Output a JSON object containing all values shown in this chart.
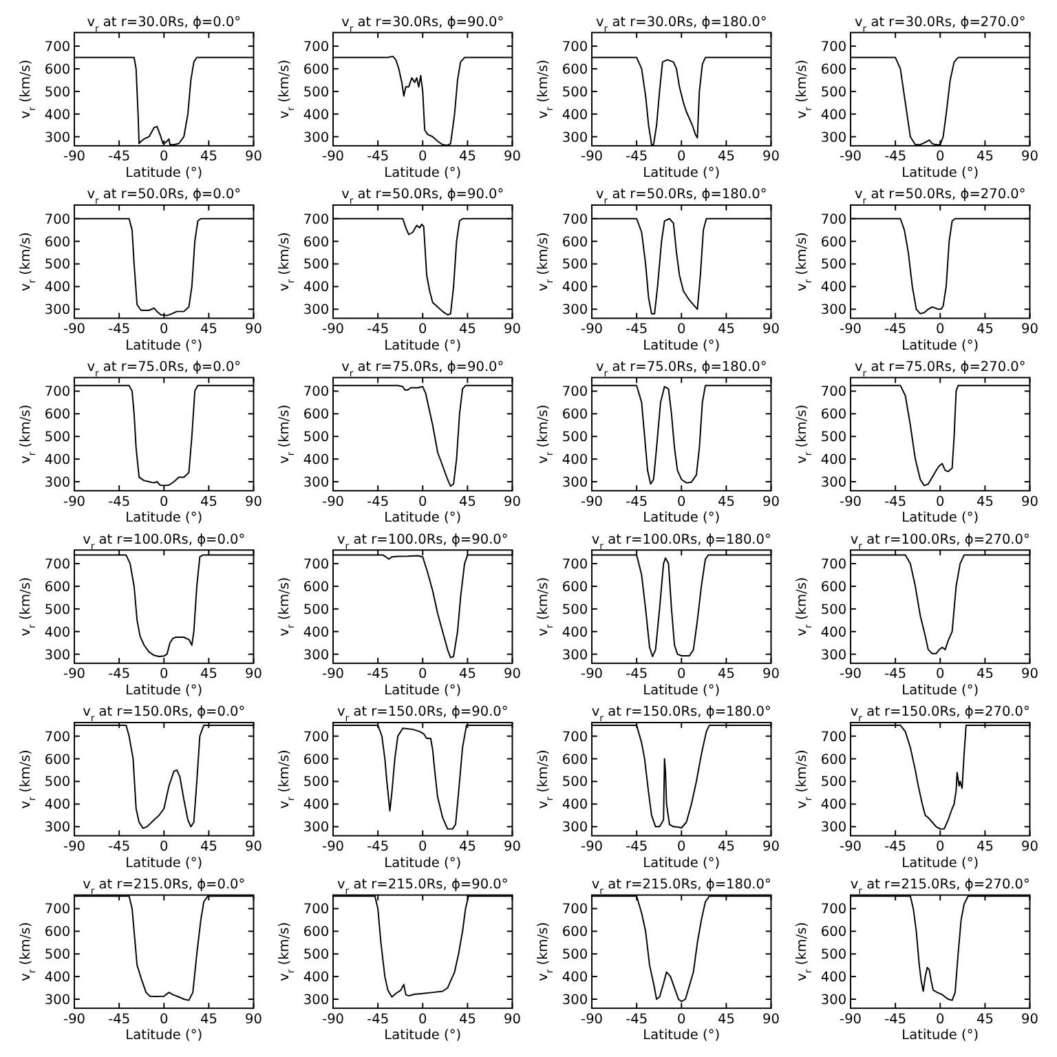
{
  "chart_data": [
    {
      "type": "line",
      "title": "v$_{r}$ at r=30.0Rs, ϕ=0.0°",
      "xlabel": "Latitude (°)",
      "ylabel": "v$_{r}$ (km/s)",
      "xlim": [
        -90,
        90
      ],
      "xticks": [
        -90,
        -45,
        0,
        45,
        90
      ],
      "ylim": [
        260,
        760
      ],
      "yticks": [
        300,
        400,
        500,
        600,
        700
      ],
      "series": [
        {
          "color": "#000000",
          "x": [
            -90,
            -30,
            -28,
            -26,
            -25,
            -23,
            -20,
            -15,
            -10,
            -7,
            -4,
            -1,
            2,
            5,
            6,
            10,
            15,
            20,
            24,
            27,
            30,
            33,
            90
          ],
          "values": [
            650,
            650,
            600,
            400,
            270,
            280,
            290,
            300,
            340,
            345,
            310,
            270,
            275,
            290,
            265,
            265,
            270,
            300,
            400,
            550,
            630,
            650,
            650
          ]
        }
      ]
    },
    {
      "type": "line",
      "title": "v$_{r}$ at r=30.0Rs, ϕ=90.0°",
      "xlabel": "Latitude (°)",
      "ylabel": "v$_{r}$ (km/s)",
      "xlim": [
        -90,
        90
      ],
      "xticks": [
        -90,
        -45,
        0,
        45,
        90
      ],
      "ylim": [
        260,
        760
      ],
      "yticks": [
        300,
        400,
        500,
        600,
        700
      ],
      "series": [
        {
          "color": "#000000",
          "x": [
            -90,
            -35,
            -30,
            -27,
            -24,
            -21,
            -19,
            -17,
            -14,
            -11,
            -8,
            -6,
            -4,
            -2,
            0,
            2,
            5,
            10,
            15,
            20,
            25,
            28,
            32,
            35,
            38,
            42,
            90
          ],
          "values": [
            650,
            650,
            655,
            640,
            600,
            540,
            480,
            520,
            520,
            560,
            540,
            560,
            520,
            570,
            500,
            330,
            310,
            300,
            280,
            265,
            262,
            270,
            400,
            550,
            630,
            650,
            650
          ]
        }
      ]
    },
    {
      "type": "line",
      "title": "v$_{r}$ at r=30.0Rs, ϕ=180.0°",
      "xlabel": "Latitude (°)",
      "ylabel": "v$_{r}$ (km/s)",
      "xlim": [
        -90,
        90
      ],
      "xticks": [
        -90,
        -45,
        0,
        45,
        90
      ],
      "ylim": [
        260,
        760
      ],
      "yticks": [
        300,
        400,
        500,
        600,
        700
      ],
      "series": [
        {
          "color": "#000000",
          "x": [
            -90,
            -45,
            -40,
            -36,
            -33,
            -30,
            -28,
            -25,
            -22,
            -19,
            -14,
            -8,
            -5,
            -2,
            2,
            5,
            8,
            11,
            14,
            16,
            18,
            21,
            24,
            90
          ],
          "values": [
            650,
            650,
            600,
            480,
            350,
            265,
            265,
            350,
            500,
            630,
            640,
            630,
            600,
            520,
            450,
            410,
            380,
            350,
            310,
            295,
            500,
            620,
            650,
            650
          ]
        }
      ]
    },
    {
      "type": "line",
      "title": "v$_{r}$ at r=30.0Rs, ϕ=270.0°",
      "xlabel": "Latitude (°)",
      "ylabel": "v$_{r}$ (km/s)",
      "xlim": [
        -90,
        90
      ],
      "xticks": [
        -90,
        -45,
        0,
        45,
        90
      ],
      "ylim": [
        260,
        760
      ],
      "yticks": [
        300,
        400,
        500,
        600,
        700
      ],
      "series": [
        {
          "color": "#000000",
          "x": [
            -90,
            -45,
            -40,
            -35,
            -30,
            -25,
            -20,
            -15,
            -11,
            -8,
            -5,
            0,
            3,
            6,
            10,
            14,
            18,
            90
          ],
          "values": [
            650,
            650,
            600,
            450,
            300,
            265,
            265,
            275,
            285,
            270,
            265,
            265,
            300,
            400,
            550,
            630,
            650,
            650
          ]
        }
      ]
    },
    {
      "type": "line",
      "title": "v$_{r}$ at r=50.0Rs, ϕ=0.0°",
      "xlabel": "Latitude (°)",
      "ylabel": "v$_{r}$ (km/s)",
      "xlim": [
        -90,
        90
      ],
      "xticks": [
        -90,
        -45,
        0,
        45,
        90
      ],
      "ylim": [
        260,
        760
      ],
      "yticks": [
        300,
        400,
        500,
        600,
        700
      ],
      "series": [
        {
          "color": "#000000",
          "x": [
            -90,
            -35,
            -32,
            -30,
            -27,
            -23,
            -15,
            -10,
            -7,
            -3,
            3,
            8,
            13,
            20,
            25,
            28,
            31,
            34,
            37,
            90
          ],
          "values": [
            700,
            700,
            650,
            500,
            320,
            295,
            295,
            305,
            290,
            275,
            272,
            280,
            290,
            290,
            310,
            400,
            600,
            690,
            700,
            700
          ]
        }
      ]
    },
    {
      "type": "line",
      "title": "v$_{r}$ at r=50.0Rs, ϕ=90.0°",
      "xlabel": "Latitude (°)",
      "ylabel": "v$_{r}$ (km/s)",
      "xlim": [
        -90,
        90
      ],
      "xticks": [
        -90,
        -45,
        0,
        45,
        90
      ],
      "ylim": [
        260,
        760
      ],
      "yticks": [
        300,
        400,
        500,
        600,
        700
      ],
      "series": [
        {
          "color": "#000000",
          "x": [
            -90,
            -20,
            -17,
            -14,
            -10,
            -6,
            -3,
            -1,
            1,
            4,
            7,
            10,
            15,
            20,
            25,
            28,
            31,
            34,
            37,
            40,
            90
          ],
          "values": [
            700,
            700,
            660,
            630,
            640,
            670,
            660,
            675,
            665,
            450,
            380,
            330,
            310,
            290,
            275,
            280,
            400,
            600,
            690,
            700,
            700
          ]
        }
      ]
    },
    {
      "type": "line",
      "title": "v$_{r}$ at r=50.0Rs, ϕ=180.0°",
      "xlabel": "Latitude (°)",
      "ylabel": "v$_{r}$ (km/s)",
      "xlim": [
        -90,
        90
      ],
      "xticks": [
        -90,
        -45,
        0,
        45,
        90
      ],
      "ylim": [
        260,
        760
      ],
      "yticks": [
        300,
        400,
        500,
        600,
        700
      ],
      "series": [
        {
          "color": "#000000",
          "x": [
            -90,
            -45,
            -40,
            -36,
            -33,
            -30,
            -27,
            -24,
            -20,
            -17,
            -12,
            -8,
            -5,
            -2,
            2,
            8,
            14,
            16,
            19,
            22,
            25,
            90
          ],
          "values": [
            700,
            700,
            640,
            500,
            350,
            280,
            280,
            400,
            600,
            690,
            700,
            680,
            550,
            450,
            380,
            340,
            310,
            300,
            450,
            650,
            700,
            700
          ]
        }
      ]
    },
    {
      "type": "line",
      "title": "v$_{r}$ at r=50.0Rs, ϕ=270.0°",
      "xlabel": "Latitude (°)",
      "ylabel": "v$_{r}$ (km/s)",
      "xlim": [
        -90,
        90
      ],
      "xticks": [
        -90,
        -45,
        0,
        45,
        90
      ],
      "ylim": [
        260,
        760
      ],
      "yticks": [
        300,
        400,
        500,
        600,
        700
      ],
      "series": [
        {
          "color": "#000000",
          "x": [
            -90,
            -40,
            -36,
            -32,
            -28,
            -24,
            -20,
            -16,
            -12,
            -8,
            -5,
            -2,
            1,
            3,
            6,
            9,
            12,
            15,
            90
          ],
          "values": [
            700,
            700,
            650,
            550,
            400,
            300,
            280,
            285,
            300,
            310,
            305,
            300,
            300,
            315,
            400,
            600,
            690,
            700,
            700
          ]
        }
      ]
    },
    {
      "type": "line",
      "title": "v$_{r}$ at r=75.0Rs, ϕ=0.0°",
      "xlabel": "Latitude (°)",
      "ylabel": "v$_{r}$ (km/s)",
      "xlim": [
        -90,
        90
      ],
      "xticks": [
        -90,
        -45,
        0,
        45,
        90
      ],
      "ylim": [
        260,
        760
      ],
      "yticks": [
        300,
        400,
        500,
        600,
        700
      ],
      "series": [
        {
          "color": "#000000",
          "x": [
            -90,
            -35,
            -32,
            -30,
            -28,
            -25,
            -20,
            -15,
            -10,
            -7,
            -4,
            0,
            5,
            10,
            15,
            20,
            25,
            28,
            31,
            34,
            90
          ],
          "values": [
            725,
            725,
            700,
            600,
            450,
            320,
            305,
            300,
            295,
            300,
            285,
            283,
            285,
            300,
            320,
            320,
            340,
            500,
            700,
            725,
            725
          ]
        }
      ]
    },
    {
      "type": "line",
      "title": "v$_{r}$ at r=75.0Rs, ϕ=90.0°",
      "xlabel": "Latitude (°)",
      "ylabel": "v$_{r}$ (km/s)",
      "xlim": [
        -90,
        90
      ],
      "xticks": [
        -90,
        -45,
        0,
        45,
        90
      ],
      "ylim": [
        260,
        760
      ],
      "yticks": [
        300,
        400,
        500,
        600,
        700
      ],
      "series": [
        {
          "color": "#000000",
          "x": [
            -90,
            -25,
            -20,
            -18,
            -15,
            -12,
            -5,
            0,
            3,
            6,
            10,
            15,
            20,
            25,
            28,
            31,
            34,
            37,
            40,
            43,
            90
          ],
          "values": [
            725,
            725,
            720,
            705,
            705,
            715,
            715,
            720,
            690,
            630,
            550,
            430,
            370,
            310,
            280,
            290,
            400,
            600,
            710,
            725,
            725
          ]
        }
      ]
    },
    {
      "type": "line",
      "title": "v$_{r}$ at r=75.0Rs, ϕ=180.0°",
      "xlabel": "Latitude (°)",
      "ylabel": "v$_{r}$ (km/s)",
      "xlim": [
        -90,
        90
      ],
      "xticks": [
        -90,
        -45,
        0,
        45,
        90
      ],
      "ylim": [
        260,
        760
      ],
      "yticks": [
        300,
        400,
        500,
        600,
        700
      ],
      "series": [
        {
          "color": "#000000",
          "x": [
            -90,
            -45,
            -40,
            -37,
            -34,
            -31,
            -28,
            -25,
            -21,
            -17,
            -13,
            -10,
            -7,
            -4,
            0,
            5,
            10,
            15,
            18,
            21,
            24,
            90
          ],
          "values": [
            725,
            725,
            650,
            500,
            350,
            290,
            310,
            450,
            650,
            720,
            710,
            600,
            450,
            350,
            310,
            295,
            298,
            330,
            450,
            650,
            725,
            725
          ]
        }
      ]
    },
    {
      "type": "line",
      "title": "v$_{r}$ at r=75.0Rs, ϕ=270.0°",
      "xlabel": "Latitude (°)",
      "ylabel": "v$_{r}$ (km/s)",
      "xlim": [
        -90,
        90
      ],
      "xticks": [
        -90,
        -45,
        0,
        45,
        90
      ],
      "ylim": [
        260,
        760
      ],
      "yticks": [
        300,
        400,
        500,
        600,
        700
      ],
      "series": [
        {
          "color": "#000000",
          "x": [
            -90,
            -40,
            -35,
            -30,
            -25,
            -20,
            -16,
            -12,
            -8,
            -4,
            -1,
            2,
            5,
            8,
            12,
            14,
            16,
            18,
            90
          ],
          "values": [
            725,
            725,
            680,
            550,
            400,
            310,
            283,
            290,
            320,
            350,
            370,
            380,
            350,
            345,
            360,
            500,
            700,
            725,
            725
          ]
        }
      ]
    },
    {
      "type": "line",
      "title": "v$_{r}$ at r=100.0Rs, ϕ=0.0°",
      "xlabel": "Latitude (°)",
      "ylabel": "v$_{r}$ (km/s)",
      "xlim": [
        -90,
        90
      ],
      "xticks": [
        -90,
        -45,
        0,
        45,
        90
      ],
      "ylim": [
        260,
        760
      ],
      "yticks": [
        300,
        400,
        500,
        600,
        700
      ],
      "series": [
        {
          "color": "#000000",
          "x": [
            -90,
            -38,
            -34,
            -30,
            -27,
            -24,
            -20,
            -15,
            -10,
            -5,
            0,
            3,
            6,
            9,
            12,
            20,
            25,
            28,
            30,
            33,
            36,
            39,
            90
          ],
          "values": [
            738,
            738,
            700,
            600,
            450,
            380,
            340,
            310,
            295,
            290,
            292,
            300,
            350,
            370,
            375,
            375,
            365,
            340,
            400,
            600,
            730,
            738,
            738
          ]
        }
      ]
    },
    {
      "type": "line",
      "title": "v$_{r}$ at r=100.0Rs, ϕ=90.0°",
      "xlabel": "Latitude (°)",
      "ylabel": "v$_{r}$ (km/s)",
      "xlim": [
        -90,
        90
      ],
      "xticks": [
        -90,
        -45,
        0,
        45,
        90
      ],
      "ylim": [
        260,
        760
      ],
      "yticks": [
        300,
        400,
        500,
        600,
        700
      ],
      "series": [
        {
          "color": "#000000",
          "x": [
            -90,
            -40,
            -37,
            -34,
            -31,
            -25,
            -15,
            -5,
            0,
            5,
            10,
            15,
            20,
            25,
            28,
            31,
            35,
            38,
            42,
            45,
            90
          ],
          "values": [
            738,
            738,
            730,
            720,
            730,
            732,
            733,
            735,
            730,
            660,
            580,
            480,
            400,
            320,
            285,
            290,
            400,
            550,
            700,
            738,
            738
          ]
        }
      ]
    },
    {
      "type": "line",
      "title": "v$_{r}$ at r=100.0Rs, ϕ=180.0°",
      "xlabel": "Latitude (°)",
      "ylabel": "v$_{r}$ (km/s)",
      "xlim": [
        -90,
        90
      ],
      "xticks": [
        -90,
        -45,
        0,
        45,
        90
      ],
      "ylim": [
        260,
        760
      ],
      "yticks": [
        300,
        400,
        500,
        600,
        700
      ],
      "series": [
        {
          "color": "#000000",
          "x": [
            -90,
            -45,
            -40,
            -36,
            -32,
            -29,
            -26,
            -22,
            -18,
            -16,
            -13,
            -10,
            -7,
            -4,
            0,
            8,
            12,
            16,
            20,
            24,
            27,
            90
          ],
          "values": [
            738,
            738,
            650,
            500,
            330,
            290,
            320,
            500,
            700,
            725,
            700,
            500,
            340,
            300,
            293,
            293,
            320,
            450,
            600,
            720,
            738,
            738
          ]
        }
      ]
    },
    {
      "type": "line",
      "title": "v$_{r}$ at r=100.0Rs, ϕ=270.0°",
      "xlabel": "Latitude (°)",
      "ylabel": "v$_{r}$ (km/s)",
      "xlim": [
        -90,
        90
      ],
      "xticks": [
        -90,
        -45,
        0,
        45,
        90
      ],
      "ylim": [
        260,
        760
      ],
      "yticks": [
        300,
        400,
        500,
        600,
        700
      ],
      "series": [
        {
          "color": "#000000",
          "x": [
            -90,
            -35,
            -30,
            -25,
            -20,
            -15,
            -12,
            -8,
            -4,
            -1,
            2,
            5,
            8,
            10,
            12,
            14,
            16,
            20,
            24,
            90
          ],
          "values": [
            738,
            738,
            700,
            600,
            470,
            380,
            320,
            303,
            303,
            320,
            330,
            320,
            360,
            380,
            400,
            500,
            600,
            700,
            738,
            738
          ]
        }
      ]
    },
    {
      "type": "line",
      "title": "v$_{r}$ at r=150.0Rs, ϕ=0.0°",
      "xlabel": "Latitude (°)",
      "ylabel": "v$_{r}$ (km/s)",
      "xlim": [
        -90,
        90
      ],
      "xticks": [
        -90,
        -45,
        0,
        45,
        90
      ],
      "ylim": [
        260,
        760
      ],
      "yticks": [
        300,
        400,
        500,
        600,
        700
      ],
      "series": [
        {
          "color": "#000000",
          "x": [
            -90,
            -38,
            -35,
            -31,
            -28,
            -25,
            -21,
            -17,
            -10,
            -5,
            0,
            5,
            10,
            13,
            16,
            20,
            24,
            27,
            30,
            33,
            36,
            40,
            90
          ],
          "values": [
            748,
            748,
            700,
            600,
            380,
            320,
            293,
            300,
            330,
            350,
            380,
            480,
            545,
            550,
            520,
            420,
            330,
            300,
            320,
            500,
            700,
            748,
            748
          ]
        }
      ]
    },
    {
      "type": "line",
      "title": "v$_{r}$ at r=150.0Rs, ϕ=90.0°",
      "xlabel": "Latitude (°)",
      "ylabel": "v$_{r}$ (km/s)",
      "xlim": [
        -90,
        90
      ],
      "xticks": [
        -90,
        -45,
        0,
        45,
        90
      ],
      "ylim": [
        260,
        760
      ],
      "yticks": [
        300,
        400,
        500,
        600,
        700
      ],
      "series": [
        {
          "color": "#000000",
          "x": [
            -90,
            -45,
            -41,
            -38,
            -36,
            -33,
            -31,
            -28,
            -25,
            -20,
            -10,
            -3,
            1,
            4,
            8,
            10,
            12,
            15,
            20,
            25,
            30,
            33,
            36,
            40,
            44,
            90
          ],
          "values": [
            748,
            748,
            700,
            600,
            500,
            370,
            450,
            600,
            700,
            735,
            730,
            720,
            710,
            690,
            690,
            640,
            550,
            430,
            340,
            290,
            290,
            310,
            450,
            650,
            748,
            748
          ]
        }
      ]
    },
    {
      "type": "line",
      "title": "v$_{r}$ at r=150.0Rs, ϕ=180.0°",
      "xlabel": "Latitude (°)",
      "ylabel": "v$_{r}$ (km/s)",
      "xlim": [
        -90,
        90
      ],
      "xticks": [
        -90,
        -45,
        0,
        45,
        90
      ],
      "ylim": [
        260,
        760
      ],
      "yticks": [
        300,
        400,
        500,
        600,
        700
      ],
      "series": [
        {
          "color": "#000000",
          "x": [
            -90,
            -45,
            -40,
            -37,
            -33,
            -30,
            -26,
            -22,
            -18,
            -17,
            -16,
            -15,
            -12,
            -8,
            -3,
            0,
            5,
            10,
            15,
            20,
            25,
            28,
            90
          ],
          "values": [
            748,
            748,
            670,
            600,
            450,
            350,
            300,
            300,
            330,
            600,
            540,
            400,
            310,
            300,
            298,
            295,
            320,
            400,
            500,
            620,
            720,
            748,
            748
          ]
        }
      ]
    },
    {
      "type": "line",
      "title": "v$_{r}$ at r=150.0Rs, ϕ=270.0°",
      "xlabel": "Latitude (°)",
      "ylabel": "v$_{r}$ (km/s)",
      "xlim": [
        -90,
        90
      ],
      "xticks": [
        -90,
        -45,
        0,
        45,
        90
      ],
      "ylim": [
        260,
        760
      ],
      "yticks": [
        300,
        400,
        500,
        600,
        700
      ],
      "series": [
        {
          "color": "#000000",
          "x": [
            -90,
            -40,
            -35,
            -30,
            -25,
            -22,
            -18,
            -15,
            -12,
            -8,
            -4,
            0,
            4,
            8,
            12,
            14,
            16,
            17,
            19,
            20,
            22,
            24,
            26,
            90
          ],
          "values": [
            748,
            748,
            720,
            650,
            550,
            480,
            400,
            350,
            340,
            320,
            300,
            290,
            290,
            330,
            380,
            400,
            460,
            540,
            480,
            500,
            470,
            620,
            748,
            748
          ]
        }
      ]
    },
    {
      "type": "line",
      "title": "v$_{r}$ at r=215.0Rs, ϕ=0.0°",
      "xlabel": "Latitude (°)",
      "ylabel": "v$_{r}$ (km/s)",
      "xlim": [
        -90,
        90
      ],
      "xticks": [
        -90,
        -45,
        0,
        45,
        90
      ],
      "ylim": [
        260,
        760
      ],
      "yticks": [
        300,
        400,
        500,
        600,
        700
      ],
      "series": [
        {
          "color": "#000000",
          "x": [
            -90,
            -35,
            -32,
            -30,
            -27,
            -22,
            -18,
            -14,
            -8,
            0,
            5,
            9,
            15,
            20,
            25,
            29,
            33,
            37,
            40,
            44,
            90
          ],
          "values": [
            755,
            755,
            700,
            600,
            450,
            380,
            330,
            313,
            312,
            313,
            330,
            320,
            310,
            300,
            295,
            330,
            500,
            650,
            730,
            755,
            755
          ]
        }
      ]
    },
    {
      "type": "line",
      "title": "v$_{r}$ at r=215.0Rs, ϕ=90.0°",
      "xlabel": "Latitude (°)",
      "ylabel": "v$_{r}$ (km/s)",
      "xlim": [
        -90,
        90
      ],
      "xticks": [
        -90,
        -45,
        0,
        45,
        90
      ],
      "ylim": [
        260,
        760
      ],
      "yticks": [
        300,
        400,
        500,
        600,
        700
      ],
      "series": [
        {
          "color": "#000000",
          "x": [
            -90,
            -48,
            -45,
            -42,
            -38,
            -35,
            -31,
            -27,
            -22,
            -19,
            -17,
            -14,
            -8,
            0,
            10,
            20,
            25,
            28,
            32,
            36,
            40,
            43,
            46,
            90
          ],
          "values": [
            755,
            755,
            700,
            550,
            400,
            340,
            310,
            325,
            340,
            365,
            320,
            315,
            322,
            325,
            330,
            335,
            350,
            380,
            420,
            500,
            600,
            700,
            755,
            755
          ]
        }
      ]
    },
    {
      "type": "line",
      "title": "v$_{r}$ at r=215.0Rs, ϕ=180.0°",
      "xlabel": "Latitude (°)",
      "ylabel": "v$_{r}$ (km/s)",
      "xlim": [
        -90,
        90
      ],
      "xticks": [
        -90,
        -45,
        0,
        45,
        90
      ],
      "ylim": [
        260,
        760
      ],
      "yticks": [
        300,
        400,
        500,
        600,
        700
      ],
      "series": [
        {
          "color": "#000000",
          "x": [
            -90,
            -45,
            -40,
            -36,
            -32,
            -28,
            -25,
            -22,
            -18,
            -15,
            -11,
            -7,
            -3,
            0,
            4,
            8,
            12,
            16,
            20,
            24,
            28,
            90
          ],
          "values": [
            755,
            755,
            680,
            600,
            450,
            370,
            300,
            310,
            370,
            420,
            400,
            350,
            300,
            290,
            300,
            360,
            420,
            550,
            650,
            730,
            755,
            755
          ]
        }
      ]
    },
    {
      "type": "line",
      "title": "v$_{r}$ at r=215.0Rs, ϕ=270.0°",
      "xlabel": "Latitude (°)",
      "ylabel": "v$_{r}$ (km/s)",
      "xlim": [
        -90,
        90
      ],
      "xticks": [
        -90,
        -45,
        0,
        45,
        90
      ],
      "ylim": [
        260,
        760
      ],
      "yticks": [
        300,
        400,
        500,
        600,
        700
      ],
      "series": [
        {
          "color": "#000000",
          "x": [
            -90,
            -30,
            -27,
            -24,
            -21,
            -19,
            -17,
            -15,
            -13,
            -11,
            -9,
            -7,
            -3,
            2,
            8,
            12,
            15,
            18,
            21,
            24,
            28,
            90
          ],
          "values": [
            755,
            755,
            700,
            600,
            450,
            380,
            335,
            400,
            440,
            430,
            380,
            340,
            330,
            320,
            300,
            295,
            330,
            500,
            650,
            720,
            755,
            755
          ]
        }
      ]
    }
  ]
}
